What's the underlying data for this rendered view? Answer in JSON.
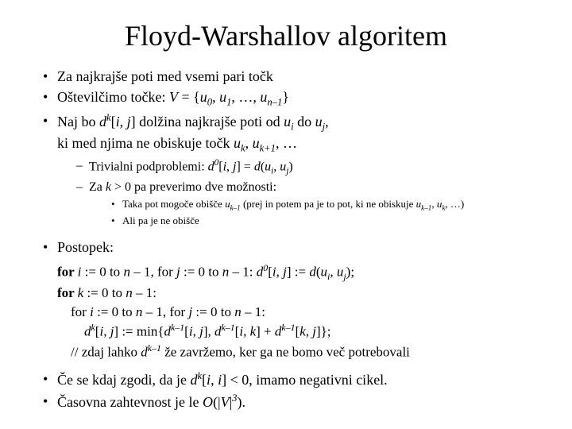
{
  "title": "Floyd-Warshallov algoritem",
  "b1": "Za najkrajše poti med vsemi pari točk",
  "b2_a": "Oštevilčimo točke: ",
  "b2_b": "V",
  "b2_c": " = {",
  "b2_d": "u",
  "b2_e": "0",
  "b2_f": ", ",
  "b2_g": "u",
  "b2_h": "1",
  "b2_i": ", …, ",
  "b2_j": "u",
  "b2_k": "n–1",
  "b2_l": "}",
  "b3_a": "Naj bo ",
  "b3_b": "d",
  "b3_c": "k",
  "b3_d": "[",
  "b3_e": "i",
  "b3_f": ", ",
  "b3_g": "j",
  "b3_h": "] dolžina najkrajše poti od ",
  "b3_i": "u",
  "b3_j": "i",
  "b3_k": " do ",
  "b3_l": "u",
  "b3_m": "j",
  "b3_n": ",",
  "b3_line2_a": "ki med njima ne obiskuje točk ",
  "b3_line2_b": "u",
  "b3_line2_c": "k",
  "b3_line2_d": ", ",
  "b3_line2_e": "u",
  "b3_line2_f": "k+1",
  "b3_line2_g": ", …",
  "s1_a": "Trivialni podproblemi: ",
  "s1_b": "d",
  "s1_c": "0",
  "s1_d": "[",
  "s1_e": "i",
  "s1_f": ", ",
  "s1_g": "j",
  "s1_h": "] = ",
  "s1_i": "d",
  "s1_j": "(",
  "s1_k": "u",
  "s1_l": "i",
  "s1_m": ", ",
  "s1_n": "u",
  "s1_o": "j",
  "s1_p": ")",
  "s2_a": "Za ",
  "s2_b": "k",
  "s2_c": " > 0 pa preverimo dve možnosti:",
  "t1_a": "Taka pot mogoče obišče ",
  "t1_b": "u",
  "t1_c": "k–1",
  "t1_d": " (prej in potem pa je to pot, ki ne obiskuje ",
  "t1_e": "u",
  "t1_f": "k–1",
  "t1_g": ", ",
  "t1_h": "u",
  "t1_i": "k",
  "t1_j": ", …)",
  "t2": "Ali pa je ne obišče",
  "b4": "Postopek:",
  "c1_a": "for ",
  "c1_b": "i",
  "c1_c": " := 0 to ",
  "c1_d": "n",
  "c1_e": " – 1, for ",
  "c1_f": "j",
  "c1_g": " := 0 to ",
  "c1_h": "n",
  "c1_i": " – 1: ",
  "c1_j": "d",
  "c1_k": "0",
  "c1_l": "[",
  "c1_m": "i",
  "c1_n": ", ",
  "c1_o": "j",
  "c1_p": "] := ",
  "c1_q": "d",
  "c1_r": "(",
  "c1_s": "u",
  "c1_t": "i",
  "c1_u": ", ",
  "c1_v": "u",
  "c1_w": "j",
  "c1_x": ");",
  "c2_a": "for ",
  "c2_b": "k",
  "c2_c": " := 0 to ",
  "c2_d": "n",
  "c2_e": " – 1:",
  "c3_a": "    for ",
  "c3_b": "i",
  "c3_c": " := 0 to ",
  "c3_d": "n",
  "c3_e": " – 1, for ",
  "c3_f": "j",
  "c3_g": " := 0 to ",
  "c3_h": "n",
  "c3_i": " – 1:",
  "c4_a": "        ",
  "c4_b": "d",
  "c4_c": "k",
  "c4_d": "[",
  "c4_e": "i",
  "c4_f": ", ",
  "c4_g": "j",
  "c4_h": "] := min{",
  "c4_i": "d",
  "c4_j": "k–1",
  "c4_k": "[",
  "c4_l": "i",
  "c4_m": ", ",
  "c4_n": "j",
  "c4_o": "], ",
  "c4_p": "d",
  "c4_q": "k–1",
  "c4_r": "[",
  "c4_s": "i",
  "c4_t": ", ",
  "c4_u": "k",
  "c4_v": "] + ",
  "c4_w": "d",
  "c4_x": "k–1",
  "c4_y": "[",
  "c4_z": "k",
  "c4_aa": ", ",
  "c4_ab": "j",
  "c4_ac": "]};",
  "c5_a": "    // zdaj lahko ",
  "c5_b": "d",
  "c5_c": "k–1",
  "c5_d": " že zavržemo, ker ga ne bomo več potrebovali",
  "b5_a": "Če se kdaj zgodi, da je ",
  "b5_b": "d",
  "b5_c": "k",
  "b5_d": "[",
  "b5_e": "i",
  "b5_f": ", ",
  "b5_g": "i",
  "b5_h": "] < 0, imamo negativni cikel.",
  "b6_a": "Časovna zahtevnost je le ",
  "b6_b": "O",
  "b6_c": "(|",
  "b6_d": "V",
  "b6_e": "|",
  "b6_f": "3",
  "b6_g": ")."
}
